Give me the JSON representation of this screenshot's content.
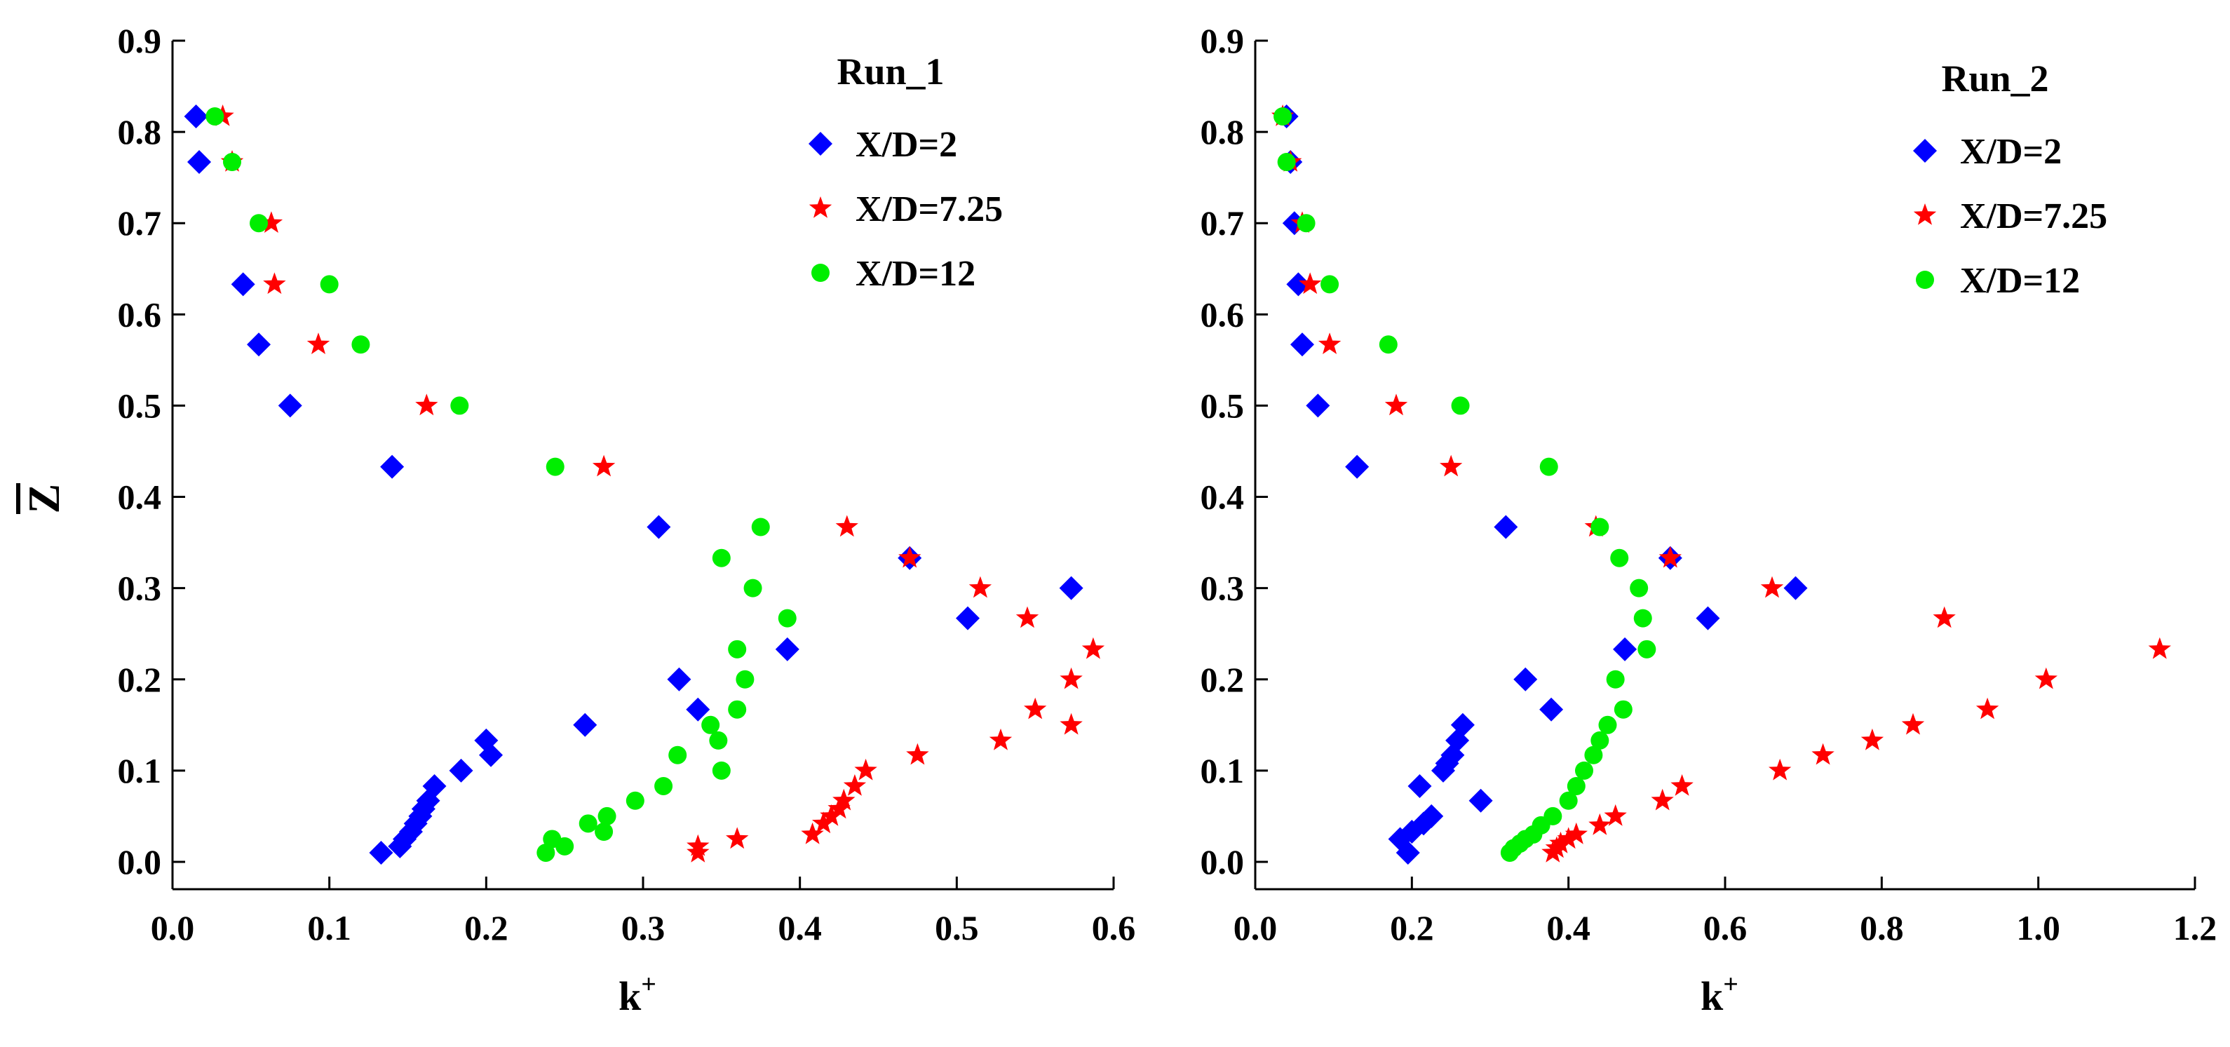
{
  "chart_data": [
    {
      "type": "scatter",
      "title": "",
      "legend_title": "Run_1",
      "legend_position": "top-right",
      "xlabel": "k",
      "xlabel_sup": "+",
      "ylabel": "Z",
      "xlim": [
        0,
        0.6
      ],
      "ylim": [
        -0.03,
        0.9
      ],
      "xticks": [
        0.0,
        0.1,
        0.2,
        0.3,
        0.4,
        0.5,
        0.6
      ],
      "xtick_labels": [
        "0.0",
        "0.1",
        "0.2",
        "0.3",
        "0.4",
        "0.5",
        "0.6"
      ],
      "yticks": [
        0.0,
        0.1,
        0.2,
        0.3,
        0.4,
        0.5,
        0.6,
        0.7,
        0.8,
        0.9
      ],
      "ytick_labels": [
        "0.0",
        "0.1",
        "0.2",
        "0.3",
        "0.4",
        "0.5",
        "0.6",
        "0.7",
        "0.8",
        "0.9"
      ],
      "series": [
        {
          "name": "X/D=2",
          "marker": "diamond",
          "color": "#0000ff",
          "x": [
            0.015,
            0.017,
            0.045,
            0.055,
            0.075,
            0.14,
            0.31,
            0.47,
            0.573,
            0.507,
            0.392,
            0.323,
            0.335,
            0.263,
            0.203,
            0.2,
            0.184,
            0.167,
            0.163,
            0.16,
            0.158,
            0.155,
            0.152,
            0.148,
            0.145,
            0.133
          ],
          "y": [
            0.817,
            0.767,
            0.633,
            0.567,
            0.5,
            0.433,
            0.367,
            0.333,
            0.3,
            0.267,
            0.233,
            0.2,
            0.167,
            0.15,
            0.117,
            0.133,
            0.1,
            0.083,
            0.067,
            0.058,
            0.05,
            0.042,
            0.033,
            0.025,
            0.017,
            0.01
          ]
        },
        {
          "name": "X/D=7.25",
          "marker": "star",
          "color": "#ff0000",
          "x": [
            0.032,
            0.038,
            0.063,
            0.065,
            0.093,
            0.162,
            0.275,
            0.43,
            0.47,
            0.515,
            0.545,
            0.587,
            0.573,
            0.55,
            0.573,
            0.528,
            0.475,
            0.442,
            0.435,
            0.428,
            0.425,
            0.42,
            0.415,
            0.408,
            0.36,
            0.335,
            0.335
          ],
          "y": [
            0.817,
            0.767,
            0.7,
            0.633,
            0.567,
            0.5,
            0.433,
            0.367,
            0.333,
            0.3,
            0.267,
            0.233,
            0.2,
            0.167,
            0.15,
            0.133,
            0.117,
            0.1,
            0.083,
            0.067,
            0.058,
            0.05,
            0.042,
            0.03,
            0.025,
            0.017,
            0.01
          ]
        },
        {
          "name": "X/D=12",
          "marker": "circle",
          "color": "#00ee00",
          "x": [
            0.027,
            0.038,
            0.055,
            0.1,
            0.12,
            0.183,
            0.244,
            0.35,
            0.375,
            0.37,
            0.392,
            0.36,
            0.365,
            0.36,
            0.343,
            0.348,
            0.322,
            0.35,
            0.313,
            0.295,
            0.277,
            0.275,
            0.265,
            0.25,
            0.242,
            0.238
          ],
          "y": [
            0.817,
            0.767,
            0.7,
            0.633,
            0.567,
            0.5,
            0.433,
            0.333,
            0.367,
            0.3,
            0.267,
            0.233,
            0.2,
            0.167,
            0.15,
            0.133,
            0.117,
            0.1,
            0.083,
            0.067,
            0.05,
            0.033,
            0.042,
            0.017,
            0.025,
            0.01
          ]
        }
      ]
    },
    {
      "type": "scatter",
      "title": "",
      "legend_title": "Run_2",
      "legend_position": "top-right",
      "xlabel": "k",
      "xlabel_sup": "+",
      "ylabel": "",
      "xlim": [
        0,
        1.2
      ],
      "ylim": [
        -0.03,
        0.9
      ],
      "xticks": [
        0.0,
        0.2,
        0.4,
        0.6,
        0.8,
        1.0,
        1.2
      ],
      "xtick_labels": [
        "0.0",
        "0.2",
        "0.4",
        "0.6",
        "0.8",
        "1.0",
        "1.2"
      ],
      "yticks": [
        0.0,
        0.1,
        0.2,
        0.3,
        0.4,
        0.5,
        0.6,
        0.7,
        0.8,
        0.9
      ],
      "ytick_labels": [
        "0.0",
        "0.1",
        "0.2",
        "0.3",
        "0.4",
        "0.5",
        "0.6",
        "0.7",
        "0.8",
        "0.9"
      ],
      "series": [
        {
          "name": "X/D=2",
          "marker": "diamond",
          "color": "#0000ff",
          "x": [
            0.04,
            0.045,
            0.05,
            0.055,
            0.06,
            0.08,
            0.13,
            0.32,
            0.53,
            0.69,
            0.578,
            0.472,
            0.345,
            0.378,
            0.265,
            0.258,
            0.252,
            0.245,
            0.24,
            0.21,
            0.288,
            0.225,
            0.215,
            0.2,
            0.185,
            0.195
          ],
          "y": [
            0.817,
            0.767,
            0.7,
            0.633,
            0.567,
            0.5,
            0.433,
            0.367,
            0.333,
            0.3,
            0.267,
            0.233,
            0.2,
            0.167,
            0.15,
            0.133,
            0.117,
            0.108,
            0.1,
            0.083,
            0.067,
            0.05,
            0.042,
            0.033,
            0.025,
            0.01
          ]
        },
        {
          "name": "X/D=7.25",
          "marker": "star",
          "color": "#ff0000",
          "x": [
            0.035,
            0.045,
            0.06,
            0.07,
            0.095,
            0.18,
            0.25,
            0.435,
            0.53,
            0.66,
            0.88,
            1.155,
            1.01,
            0.935,
            0.84,
            0.788,
            0.725,
            0.67,
            0.545,
            0.52,
            0.46,
            0.44,
            0.41,
            0.4,
            0.39,
            0.385,
            0.38
          ],
          "y": [
            0.817,
            0.767,
            0.7,
            0.633,
            0.567,
            0.5,
            0.433,
            0.367,
            0.333,
            0.3,
            0.267,
            0.233,
            0.2,
            0.167,
            0.15,
            0.133,
            0.117,
            0.1,
            0.083,
            0.067,
            0.05,
            0.04,
            0.03,
            0.025,
            0.02,
            0.015,
            0.01
          ]
        },
        {
          "name": "X/D=12",
          "marker": "circle",
          "color": "#00ee00",
          "x": [
            0.035,
            0.04,
            0.065,
            0.095,
            0.17,
            0.262,
            0.375,
            0.44,
            0.465,
            0.49,
            0.495,
            0.5,
            0.46,
            0.47,
            0.45,
            0.44,
            0.432,
            0.42,
            0.41,
            0.4,
            0.38,
            0.365,
            0.355,
            0.345,
            0.338,
            0.33,
            0.325
          ],
          "y": [
            0.817,
            0.767,
            0.7,
            0.633,
            0.567,
            0.5,
            0.433,
            0.367,
            0.333,
            0.3,
            0.267,
            0.233,
            0.2,
            0.167,
            0.15,
            0.133,
            0.117,
            0.1,
            0.083,
            0.067,
            0.05,
            0.04,
            0.03,
            0.025,
            0.02,
            0.015,
            0.01
          ]
        }
      ]
    }
  ]
}
